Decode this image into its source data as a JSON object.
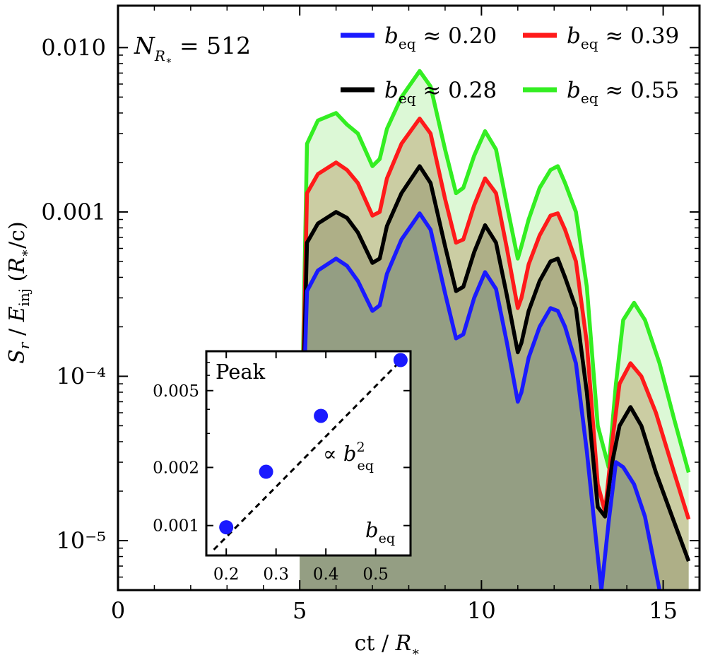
{
  "chart_data": {
    "type": "line",
    "yscale": "log",
    "xlim": [
      0,
      16.0
    ],
    "ylim": [
      5e-06,
      0.018
    ],
    "xticks": [
      0,
      5,
      10,
      15
    ],
    "xtick_labels": [
      "0",
      "5",
      "10",
      "15"
    ],
    "yticks": [
      1e-05,
      0.0001,
      0.001,
      0.01
    ],
    "ytick_labels": [
      "10⁻⁵",
      "10⁻⁴",
      "0.001",
      "0.010"
    ],
    "xlabel": "ct / R∗",
    "ylabel": "Sᵣ / Eᵢₙⱼ (R∗/c)",
    "annotation": "N_R∗ = 512",
    "legend_position": "top-right",
    "series": [
      {
        "name": "b_eq ≈ 0.55",
        "legend_label": "≈ 0.55",
        "color": "#33ee22",
        "fill": "#d6f7cf",
        "x": [
          5.0,
          5.2,
          5.5,
          6.0,
          6.3,
          6.6,
          7.0,
          7.2,
          7.4,
          7.8,
          8.3,
          8.6,
          9.0,
          9.3,
          9.5,
          9.8,
          10.1,
          10.4,
          10.7,
          11.0,
          11.1,
          11.3,
          11.6,
          11.9,
          12.1,
          12.3,
          12.6,
          12.9,
          13.2,
          13.5,
          13.7,
          13.9,
          14.2,
          14.5,
          14.9,
          15.3,
          15.7
        ],
        "y": [
          1.2e-05,
          0.0026,
          0.0036,
          0.004,
          0.0034,
          0.003,
          0.0019,
          0.0021,
          0.0032,
          0.005,
          0.0072,
          0.0058,
          0.0024,
          0.0013,
          0.0014,
          0.0022,
          0.0031,
          0.0024,
          0.0011,
          0.00052,
          0.00062,
          0.0009,
          0.0014,
          0.0018,
          0.0019,
          0.0015,
          0.001,
          0.00035,
          5e-05,
          2.8e-05,
          9e-05,
          0.00022,
          0.00028,
          0.00022,
          0.00012,
          5.5e-05,
          2.6e-05
        ]
      },
      {
        "name": "b_eq ≈ 0.39",
        "legend_label": "≈ 0.39",
        "color": "#ff1a1a",
        "fill": "#c8c69a",
        "x": [
          5.0,
          5.2,
          5.5,
          6.0,
          6.3,
          6.6,
          7.0,
          7.2,
          7.4,
          7.8,
          8.3,
          8.6,
          9.0,
          9.3,
          9.5,
          9.8,
          10.1,
          10.4,
          10.7,
          11.0,
          11.1,
          11.3,
          11.6,
          11.9,
          12.1,
          12.3,
          12.6,
          12.9,
          13.2,
          13.4,
          13.6,
          13.8,
          14.1,
          14.4,
          14.8,
          15.3,
          15.7
        ],
        "y": [
          1.2e-05,
          0.0013,
          0.0017,
          0.002,
          0.0018,
          0.0015,
          0.00095,
          0.001,
          0.0016,
          0.0026,
          0.0037,
          0.003,
          0.0012,
          0.00065,
          0.00068,
          0.0011,
          0.0016,
          0.0013,
          0.0006,
          0.00026,
          0.0003,
          0.00048,
          0.00072,
          0.00095,
          0.00098,
          0.00078,
          0.0005,
          0.00016,
          2.2e-05,
          1.5e-05,
          4e-05,
          9e-05,
          0.00012,
          0.0001,
          6e-05,
          2.6e-05,
          1.35e-05
        ]
      },
      {
        "name": "b_eq ≈ 0.28",
        "legend_label": "≈ 0.28",
        "color": "#000000",
        "fill": "#a9a983",
        "x": [
          5.0,
          5.2,
          5.5,
          6.0,
          6.3,
          6.6,
          7.0,
          7.2,
          7.4,
          7.8,
          8.3,
          8.6,
          9.0,
          9.3,
          9.5,
          9.8,
          10.1,
          10.4,
          10.7,
          11.0,
          11.1,
          11.3,
          11.6,
          11.9,
          12.1,
          12.3,
          12.6,
          12.9,
          13.2,
          13.4,
          13.6,
          13.8,
          14.1,
          14.4,
          14.8,
          15.3,
          15.7
        ],
        "y": [
          1.2e-05,
          0.00065,
          0.00085,
          0.001,
          0.00092,
          0.00075,
          0.00049,
          0.00052,
          0.00082,
          0.0013,
          0.0019,
          0.0015,
          0.00062,
          0.00033,
          0.00035,
          0.00057,
          0.00083,
          0.00065,
          0.00031,
          0.00014,
          0.00016,
          0.00025,
          0.00038,
          0.0005,
          0.00052,
          0.0004,
          0.00026,
          8e-05,
          1.6e-05,
          1.4e-05,
          3e-05,
          5e-05,
          6.5e-05,
          5e-05,
          2.6e-05,
          1.3e-05,
          7.5e-06
        ]
      },
      {
        "name": "b_eq ≈ 0.20",
        "legend_label": "≈ 0.20",
        "color": "#1a1aff",
        "fill": "#8f9b82",
        "x": [
          5.0,
          5.2,
          5.5,
          6.0,
          6.3,
          6.6,
          7.0,
          7.2,
          7.4,
          7.8,
          8.3,
          8.6,
          9.0,
          9.3,
          9.5,
          9.8,
          10.1,
          10.4,
          10.7,
          11.0,
          11.1,
          11.3,
          11.6,
          11.9,
          12.1,
          12.3,
          12.6,
          12.9,
          13.2,
          13.3,
          13.5,
          13.7,
          13.9,
          14.2,
          14.5,
          14.9
        ],
        "y": [
          1.2e-05,
          0.00033,
          0.00044,
          0.00052,
          0.00047,
          0.00038,
          0.00025,
          0.00027,
          0.00042,
          0.00068,
          0.00098,
          0.00078,
          0.00032,
          0.00017,
          0.00018,
          0.0003,
          0.00043,
          0.00034,
          0.00016,
          7e-05,
          8e-05,
          0.00013,
          0.0002,
          0.00026,
          0.00025,
          0.0002,
          0.00012,
          3.5e-05,
          8e-06,
          5e-06,
          1.3e-05,
          3e-05,
          2.8e-05,
          2.2e-05,
          1.4e-05,
          5e-06
        ]
      }
    ],
    "legend": [
      {
        "series": "b_eq ≈ 0.20",
        "color": "#1a1aff",
        "label": "≈ 0.20"
      },
      {
        "series": "b_eq ≈ 0.39",
        "color": "#ff1a1a",
        "label": "≈ 0.39"
      },
      {
        "series": "b_eq ≈ 0.28",
        "color": "#000000",
        "label": "≈ 0.28"
      },
      {
        "series": "b_eq ≈ 0.55",
        "color": "#33ee22",
        "label": "≈ 0.55"
      }
    ],
    "inset": {
      "type": "scatter",
      "title": "Peak",
      "xlabel": "b_eq",
      "yscale": "log",
      "xlim": [
        0.16,
        0.57
      ],
      "ylim": [
        0.0007,
        0.008
      ],
      "xticks": [
        0.2,
        0.3,
        0.4,
        0.5
      ],
      "xtick_labels": [
        "0.2",
        "0.3",
        "0.4",
        "0.5"
      ],
      "yticks": [
        0.001,
        0.002,
        0.005
      ],
      "ytick_labels": [
        "0.001",
        "0.002",
        "0.005"
      ],
      "points": {
        "x": [
          0.2,
          0.28,
          0.39,
          0.55
        ],
        "y": [
          0.00098,
          0.0019,
          0.0037,
          0.0072
        ]
      },
      "point_color": "#1a1aff",
      "fit_label": "∝ b²_eq",
      "fit": {
        "x": [
          0.175,
          0.565
        ],
        "y": [
          0.00075,
          0.0078
        ]
      }
    }
  }
}
